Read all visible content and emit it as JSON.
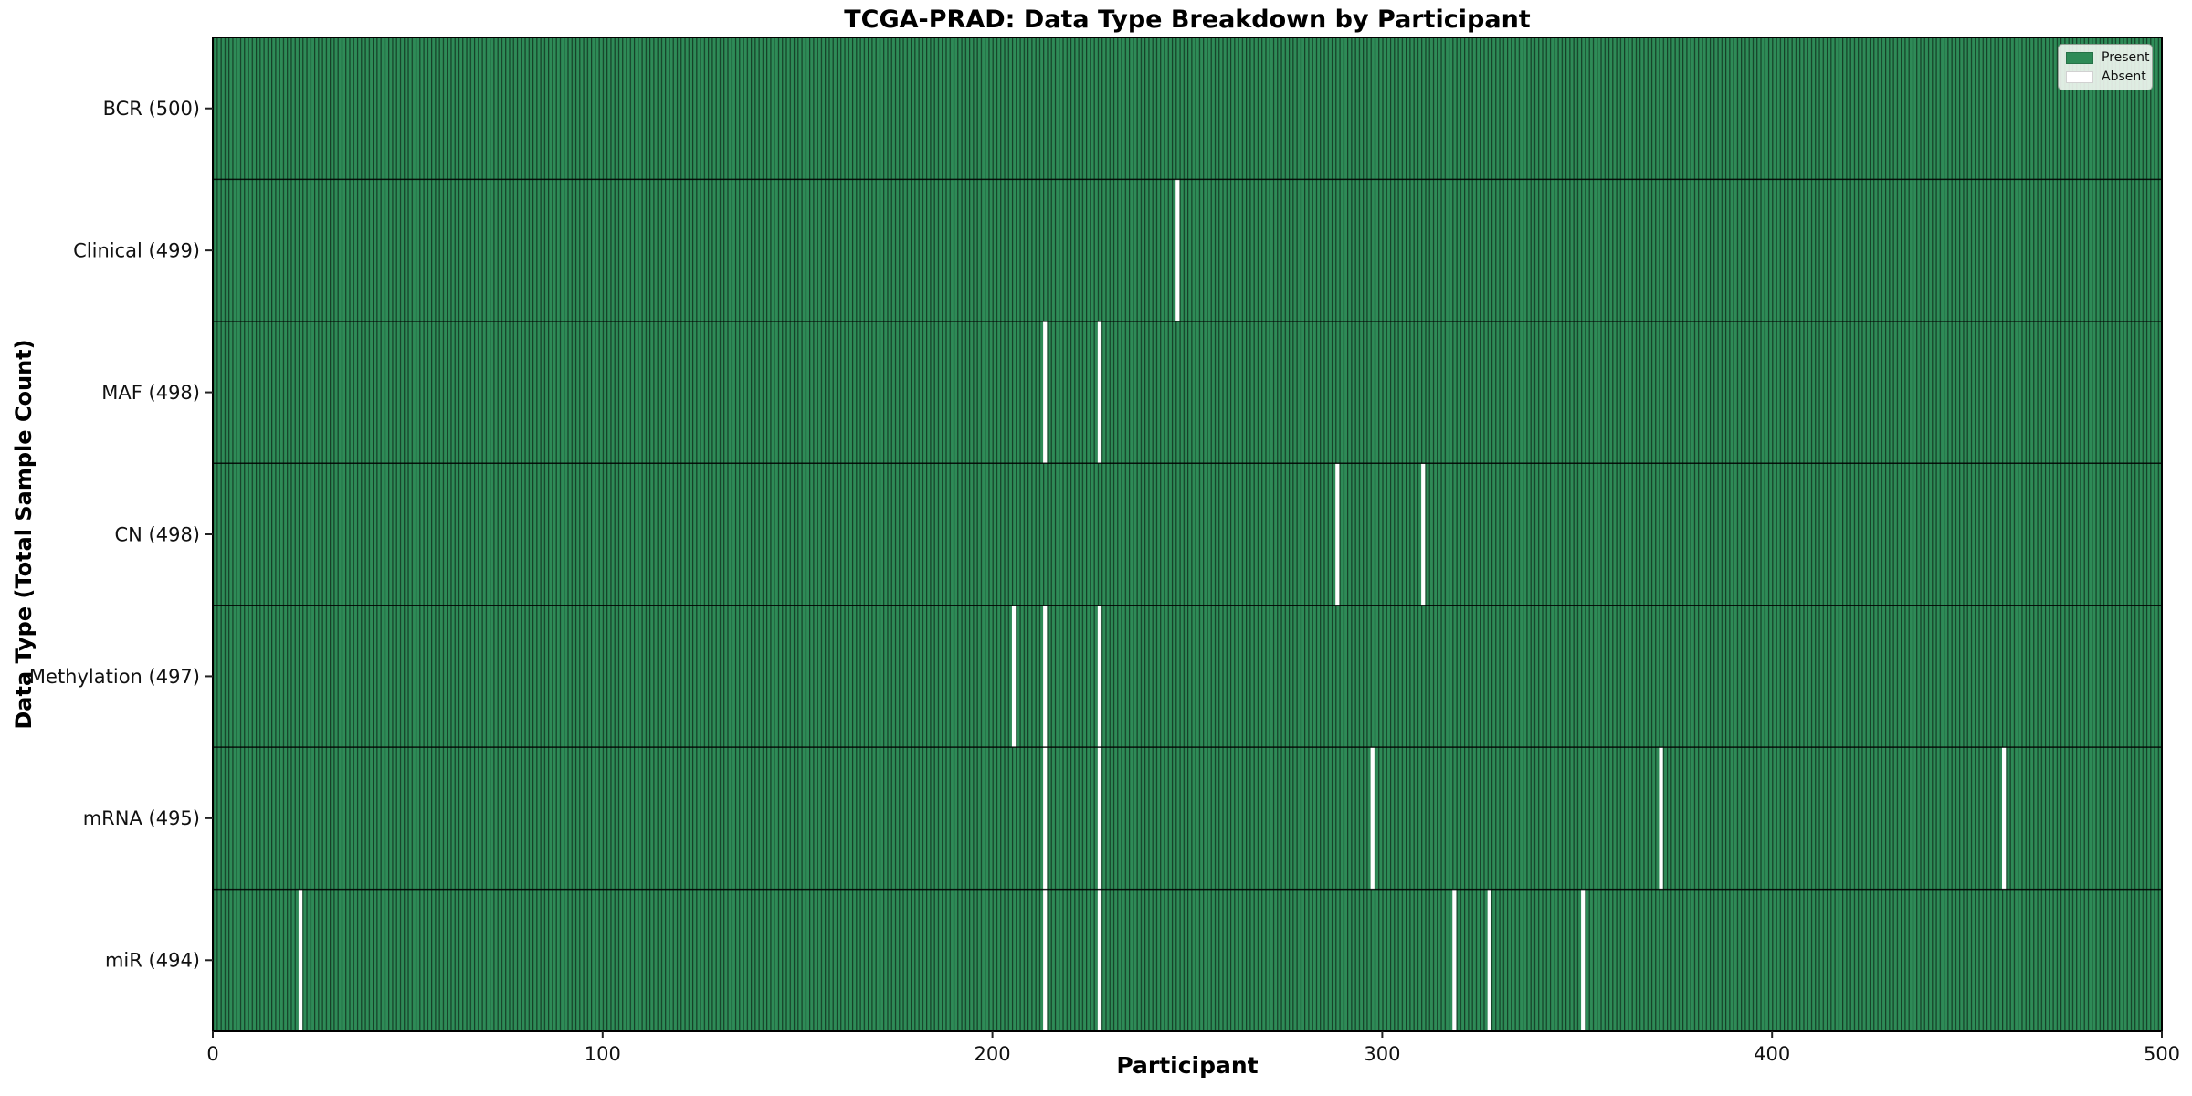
{
  "chart_data": {
    "type": "heatmap",
    "title": "TCGA-PRAD: Data Type Breakdown by Participant",
    "xlabel": "Participant",
    "ylabel": "Data Type (Total Sample Count)",
    "x_min": 0,
    "x_max": 500,
    "x_ticks": [
      0,
      100,
      200,
      300,
      400,
      500
    ],
    "n_participants": 500,
    "grid": false,
    "legend_position": "upper right",
    "rows": [
      {
        "label": "BCR (500)",
        "name": "bcr",
        "total": 500,
        "absent_participants": []
      },
      {
        "label": "Clinical (499)",
        "name": "clinical",
        "total": 499,
        "absent_participants": [
          247
        ]
      },
      {
        "label": "MAF (498)",
        "name": "maf",
        "total": 498,
        "absent_participants": [
          213,
          227
        ]
      },
      {
        "label": "CN (498)",
        "name": "cn",
        "total": 498,
        "absent_participants": [
          288,
          310
        ]
      },
      {
        "label": "Methylation (497)",
        "name": "methylation",
        "total": 497,
        "absent_participants": [
          205,
          213,
          227
        ]
      },
      {
        "label": "mRNA (495)",
        "name": "mrna",
        "total": 495,
        "absent_participants": [
          213,
          227,
          297,
          371,
          459
        ]
      },
      {
        "label": "miR (494)",
        "name": "mir",
        "total": 494,
        "absent_participants": [
          22,
          213,
          227,
          318,
          327,
          351
        ]
      }
    ],
    "legend": [
      {
        "label": "Present",
        "color": "#2e8b57"
      },
      {
        "label": "Absent",
        "color": "#ffffff"
      }
    ],
    "colors": {
      "present": "#2e8b57",
      "absent": "#ffffff",
      "cell_edge": "rgba(0,0,0,0.55)",
      "row_separator": "rgba(0,0,0,0.85)",
      "plot_border": "#000000",
      "tick": "#222222",
      "tick_label": "#111111"
    }
  }
}
